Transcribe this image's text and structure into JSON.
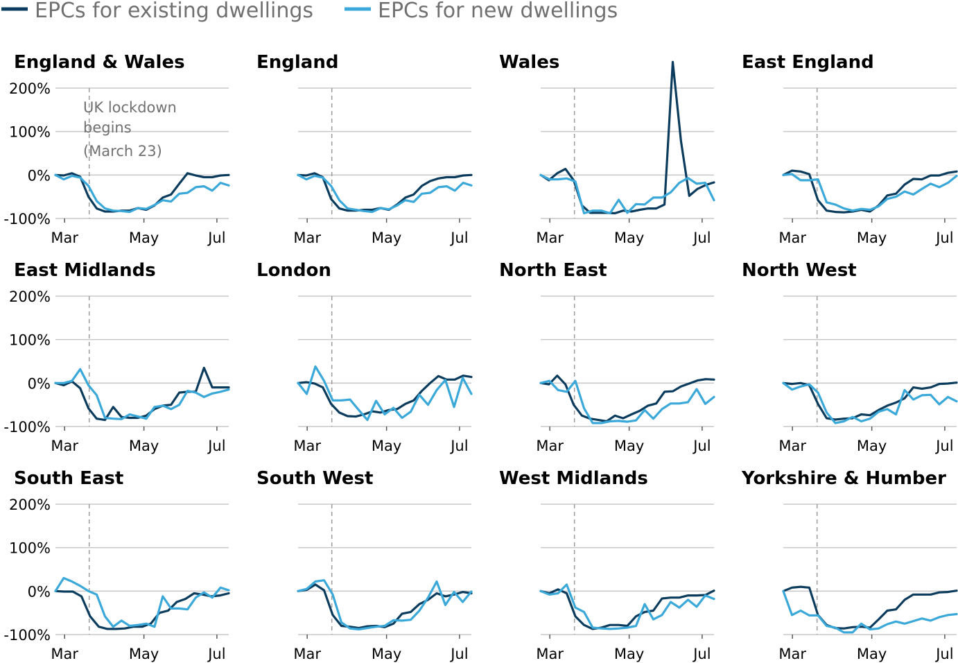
{
  "chart_data": {
    "type": "line",
    "legend": {
      "placement": "top-left",
      "items": [
        {
          "label": "EPCs for existing dwellings",
          "color": "#0b3c5d"
        },
        {
          "label": "EPCs for new dwellings",
          "color": "#3aa8d8"
        }
      ]
    },
    "y_ticks": [
      "200%",
      "100%",
      "0%",
      "-100%"
    ],
    "y_tick_values": [
      200,
      100,
      0,
      -100
    ],
    "ylim": [
      -100,
      200
    ],
    "x_ticks": [
      "Mar",
      "May",
      "Jul"
    ],
    "x_tick_weeks": [
      1,
      9.7,
      17.7
    ],
    "xlim": [
      0,
      19
    ],
    "grid": "horizontal",
    "lockdown_week": 3.7,
    "annotation": {
      "lines": [
        "UK lockdown",
        "begins",
        "(March 23)"
      ]
    },
    "series_names": [
      "EPCs for existing dwellings",
      "EPCs for new dwellings"
    ],
    "panels": [
      {
        "title": "England & Wales",
        "existing": [
          0,
          -1,
          4,
          -4,
          -50,
          -77,
          -84,
          -84,
          -82,
          -82,
          -76,
          -80,
          -70,
          -52,
          -45,
          -20,
          4,
          -1,
          -5,
          -5,
          -1,
          0
        ],
        "new": [
          0,
          -10,
          -2,
          -6,
          -25,
          -60,
          -77,
          -82,
          -83,
          -85,
          -76,
          -78,
          -69,
          -58,
          -61,
          -43,
          -41,
          -28,
          -26,
          -36,
          -18,
          -24
        ]
      },
      {
        "title": "England",
        "existing": [
          0,
          -1,
          4,
          -5,
          -55,
          -77,
          -82,
          -82,
          -80,
          -80,
          -76,
          -80,
          -68,
          -52,
          -45,
          -25,
          -14,
          -8,
          -5,
          -5,
          -1,
          0
        ],
        "new": [
          0,
          -10,
          -2,
          -6,
          -25,
          -58,
          -77,
          -80,
          -83,
          -85,
          -76,
          -79,
          -70,
          -58,
          -62,
          -43,
          -41,
          -28,
          -26,
          -36,
          -18,
          -24
        ]
      },
      {
        "title": "Wales",
        "existing": [
          0,
          -12,
          4,
          14,
          -12,
          -70,
          -87,
          -87,
          -87,
          -88,
          -82,
          -84,
          -80,
          -77,
          -77,
          -68,
          260,
          78,
          -48,
          -32,
          -23,
          -17
        ],
        "new": [
          0,
          -10,
          -10,
          -8,
          -15,
          -88,
          -82,
          -82,
          -88,
          -57,
          -87,
          -67,
          -68,
          -52,
          -52,
          -40,
          -18,
          -7,
          -20,
          -18,
          -58
        ]
      },
      {
        "title": "East England",
        "existing": [
          0,
          10,
          8,
          2,
          -58,
          -82,
          -85,
          -86,
          -84,
          -80,
          -84,
          -70,
          -47,
          -43,
          -22,
          -9,
          -10,
          -1,
          -1,
          5,
          8
        ],
        "new": [
          0,
          2,
          -12,
          -12,
          -10,
          -63,
          -68,
          -77,
          -82,
          -78,
          -80,
          -72,
          -55,
          -50,
          -38,
          -45,
          -32,
          -20,
          -28,
          -18,
          -2
        ]
      },
      {
        "title": "East Midlands",
        "existing": [
          0,
          -5,
          4,
          -12,
          -58,
          -82,
          -85,
          -55,
          -78,
          -80,
          -80,
          -75,
          -60,
          -52,
          -50,
          -22,
          -20,
          -20,
          35,
          -10,
          -10,
          -10
        ],
        "new": [
          0,
          0,
          5,
          32,
          -5,
          -28,
          -80,
          -82,
          -83,
          -72,
          -77,
          -82,
          -55,
          -52,
          -60,
          -50,
          -18,
          -22,
          -32,
          -24,
          -20,
          -15
        ]
      },
      {
        "title": "London",
        "existing": [
          0,
          2,
          -1,
          -10,
          -48,
          -68,
          -76,
          -77,
          -72,
          -65,
          -68,
          -62,
          -60,
          -48,
          -40,
          -18,
          0,
          16,
          8,
          8,
          17,
          14
        ],
        "new": [
          0,
          -25,
          38,
          5,
          -40,
          -40,
          -38,
          -62,
          -85,
          -41,
          -72,
          -57,
          -80,
          -66,
          -27,
          -50,
          -16,
          7,
          -55,
          12,
          -25
        ]
      },
      {
        "title": "North East",
        "existing": [
          0,
          -3,
          17,
          -3,
          -50,
          -75,
          -82,
          -85,
          -88,
          -75,
          -81,
          -72,
          -64,
          -52,
          -47,
          -20,
          -19,
          -8,
          -1,
          6,
          9,
          8
        ],
        "new": [
          0,
          5,
          -16,
          -20,
          5,
          -58,
          -92,
          -92,
          -88,
          -87,
          -89,
          -86,
          -62,
          -82,
          -60,
          -47,
          -47,
          -44,
          -14,
          -48,
          -32
        ]
      },
      {
        "title": "North West",
        "existing": [
          0,
          -2,
          0,
          -5,
          -48,
          -81,
          -84,
          -82,
          -81,
          -72,
          -74,
          -62,
          -52,
          -45,
          -35,
          -10,
          -13,
          -10,
          -2,
          -1,
          1
        ],
        "new": [
          0,
          -15,
          -8,
          -3,
          -22,
          -68,
          -92,
          -88,
          -78,
          -88,
          -82,
          -66,
          -60,
          -72,
          -16,
          -38,
          -28,
          -27,
          -49,
          -32,
          -42
        ]
      },
      {
        "title": "South East",
        "existing": [
          0,
          -1,
          -1,
          -12,
          -58,
          -82,
          -87,
          -87,
          -86,
          -82,
          -82,
          -75,
          -50,
          -45,
          -25,
          -18,
          -5,
          -8,
          -12,
          -10,
          -5
        ],
        "new": [
          0,
          30,
          22,
          12,
          0,
          -8,
          -58,
          -82,
          -68,
          -80,
          -78,
          -75,
          -82,
          -12,
          -40,
          -40,
          -42,
          -15,
          -3,
          -15,
          8,
          2
        ]
      },
      {
        "title": "South West",
        "existing": [
          0,
          3,
          15,
          2,
          -55,
          -80,
          -82,
          -85,
          -81,
          -80,
          -83,
          -75,
          -52,
          -48,
          -30,
          -20,
          -5,
          -12,
          -8,
          -2,
          -5
        ],
        "new": [
          0,
          5,
          22,
          25,
          -8,
          -72,
          -86,
          -88,
          -85,
          -82,
          -80,
          -67,
          -68,
          -66,
          -45,
          -15,
          22,
          -32,
          -2,
          -25,
          -1
        ]
      },
      {
        "title": "West Midlands",
        "existing": [
          0,
          -5,
          4,
          -5,
          -58,
          -78,
          -87,
          -84,
          -78,
          -78,
          -80,
          -58,
          -48,
          -45,
          -17,
          -15,
          -15,
          -10,
          -10,
          -9,
          1
        ],
        "new": [
          0,
          -8,
          -5,
          15,
          -38,
          -48,
          -84,
          -86,
          -87,
          -86,
          -84,
          -80,
          -30,
          -65,
          -55,
          -25,
          -38,
          -20,
          -36,
          -10,
          -18
        ]
      },
      {
        "title": "Yorkshire & Humber",
        "existing": [
          0,
          8,
          10,
          8,
          -55,
          -78,
          -85,
          -86,
          -83,
          -82,
          -84,
          -65,
          -45,
          -42,
          -20,
          -8,
          -8,
          -8,
          -3,
          -2,
          1
        ],
        "new": [
          0,
          -55,
          -45,
          -56,
          -56,
          -80,
          -84,
          -95,
          -95,
          -75,
          -88,
          -86,
          -76,
          -70,
          -75,
          -69,
          -63,
          -68,
          -60,
          -55,
          -53
        ]
      }
    ]
  }
}
